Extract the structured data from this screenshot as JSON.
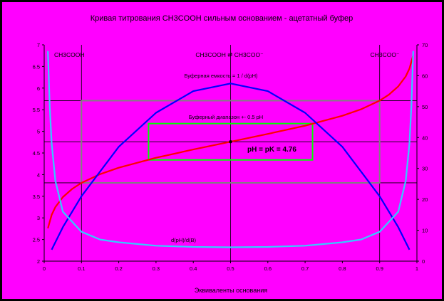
{
  "chart_data": {
    "type": "line",
    "title": "Кривая титрования CH3COOH сильным основанием - ацетатный буфер",
    "xlabel": "Эквиваленты основания",
    "ylabel": "",
    "y2label": "",
    "xlim": [
      0,
      1
    ],
    "ylim": [
      2,
      7
    ],
    "y2lim": [
      0,
      70
    ],
    "xticks": [
      "0",
      "0.1",
      "0.2",
      "0.3",
      "0.4",
      "0.5",
      "0.6",
      "0.7",
      "0.8",
      "0.9",
      "1"
    ],
    "yticks": [
      "2",
      "2.5",
      "3",
      "3.5",
      "4",
      "4.5",
      "5",
      "5.5",
      "6",
      "6.5",
      "7"
    ],
    "y2ticks": [
      "0",
      "10",
      "20",
      "30",
      "40",
      "50",
      "60",
      "70"
    ],
    "series": [
      {
        "name": "pH",
        "axis": "left",
        "color": "#ff0000",
        "x": [
          0.01,
          0.02,
          0.03,
          0.05,
          0.075,
          0.1,
          0.15,
          0.2,
          0.3,
          0.4,
          0.5,
          0.6,
          0.7,
          0.8,
          0.85,
          0.9,
          0.925,
          0.95,
          0.97,
          0.98,
          0.99
        ],
        "y": [
          2.76,
          3.07,
          3.25,
          3.48,
          3.67,
          3.81,
          4.01,
          4.16,
          4.39,
          4.58,
          4.76,
          4.94,
          5.13,
          5.36,
          5.51,
          5.71,
          5.85,
          6.04,
          6.27,
          6.45,
          6.76
        ]
      },
      {
        "name": "Буферная емкость",
        "axis": "right",
        "color": "#0000ff",
        "x": [
          0.02,
          0.05,
          0.1,
          0.15,
          0.2,
          0.3,
          0.4,
          0.5,
          0.6,
          0.7,
          0.8,
          0.85,
          0.9,
          0.95,
          0.98
        ],
        "y": [
          3.7,
          11,
          21,
          29,
          37,
          48,
          55,
          57.5,
          55,
          48,
          37,
          29,
          21,
          11,
          3.7
        ]
      },
      {
        "name": "dpH/dB",
        "axis": "right",
        "color": "#33ccff",
        "x": [
          0.01,
          0.015,
          0.02,
          0.03,
          0.05,
          0.1,
          0.15,
          0.2,
          0.3,
          0.4,
          0.5,
          0.6,
          0.7,
          0.8,
          0.85,
          0.9,
          0.95,
          0.97,
          0.98,
          0.985,
          0.99
        ],
        "y": [
          68,
          50,
          38,
          26,
          16,
          9.5,
          7,
          6.1,
          5,
          4.6,
          4.5,
          4.6,
          5,
          6.1,
          7,
          9.5,
          16,
          26,
          38,
          50,
          68
        ]
      }
    ],
    "annotations": {
      "acid": "CH3COOH",
      "equilibrium": "CH3COOH ⇌ CH3COO⁻",
      "base": "CH3COO⁻",
      "capacity": "Буферная емкость = 1 / d(pH)",
      "range": "Буферный диапазон +- 0.5 pH",
      "pk": "pH = pK = 4.76",
      "derivative": "d(pH)/d(B)"
    },
    "ref_lines": {
      "x": [
        0.1,
        0.5,
        0.9
      ],
      "y": [
        3.81,
        4.76,
        5.71
      ]
    },
    "buffer_boxes": [
      {
        "x": [
          0.1,
          0.9
        ],
        "y": [
          3.81,
          5.71
        ],
        "color": "#808080"
      },
      {
        "x": [
          0.28,
          0.72
        ],
        "y": [
          4.34,
          5.18
        ],
        "color": "#00ff00"
      }
    ],
    "colors": {
      "background": "#ff00ff",
      "frame": "#000000",
      "acid_curve": "#ff0000",
      "capacity_curve": "#0000ff",
      "derivative_curve": "#33ccff"
    }
  }
}
